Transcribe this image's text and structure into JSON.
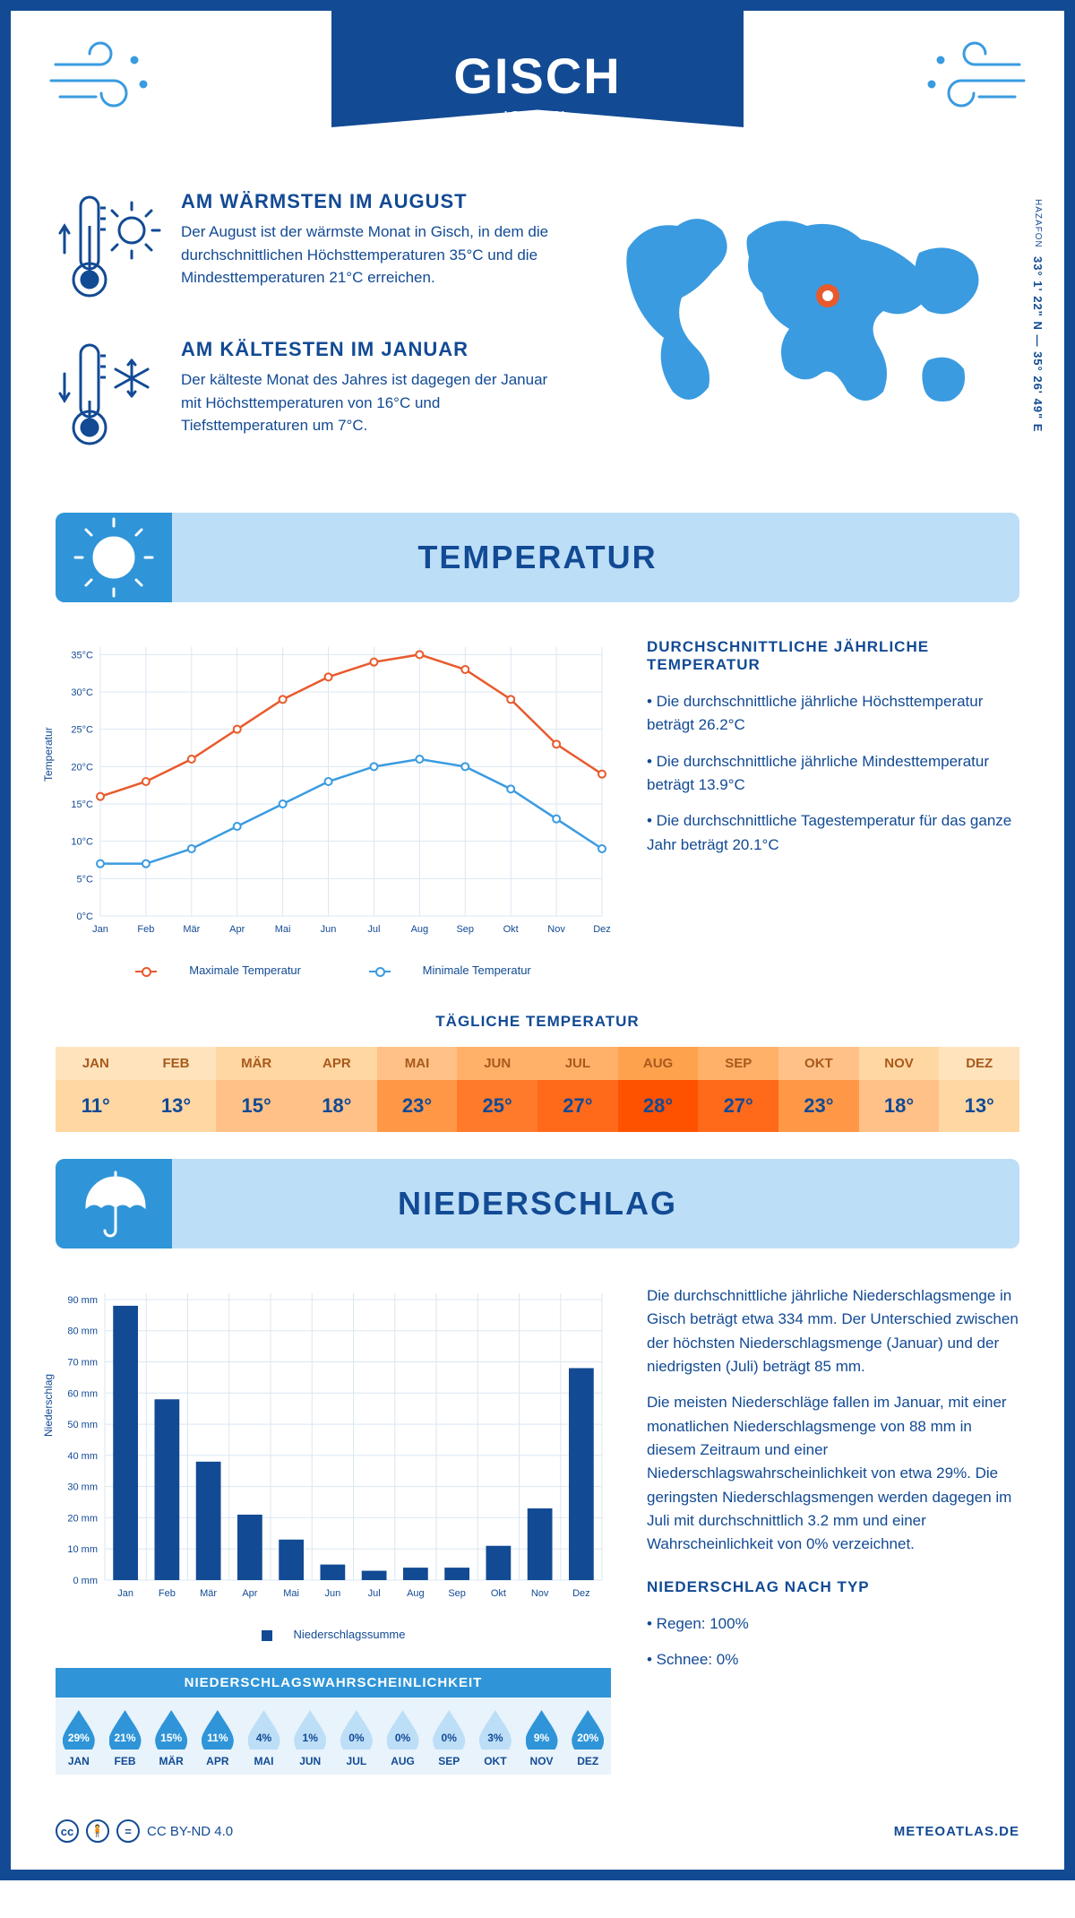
{
  "header": {
    "city": "GISCH",
    "country": "ISRAEL"
  },
  "coords": {
    "region": "HAZAFON",
    "text": "33° 1' 22\" N — 35° 26' 49\" E"
  },
  "fact_warm": {
    "title": "AM WÄRMSTEN IM AUGUST",
    "text": "Der August ist der wärmste Monat in Gisch, in dem die durchschnittlichen Höchsttemperaturen 35°C und die Mindesttemperaturen 21°C erreichen."
  },
  "fact_cold": {
    "title": "AM KÄLTESTEN IM JANUAR",
    "text": "Der kälteste Monat des Jahres ist dagegen der Januar mit Höchsttemperaturen von 16°C und Tiefsttemperaturen um 7°C."
  },
  "temp_section": {
    "title": "TEMPERATUR",
    "side_title": "DURCHSCHNITTLICHE JÄHRLICHE TEMPERATUR",
    "bullets": [
      "• Die durchschnittliche jährliche Höchsttemperatur beträgt 26.2°C",
      "• Die durchschnittliche jährliche Mindesttemperatur beträgt 13.9°C",
      "• Die durchschnittliche Tagestemperatur für das ganze Jahr beträgt 20.1°C"
    ],
    "chart": {
      "months": [
        "Jan",
        "Feb",
        "Mär",
        "Apr",
        "Mai",
        "Jun",
        "Jul",
        "Aug",
        "Sep",
        "Okt",
        "Nov",
        "Dez"
      ],
      "max": [
        16,
        18,
        21,
        25,
        29,
        32,
        34,
        35,
        33,
        29,
        23,
        19
      ],
      "min": [
        7,
        7,
        9,
        12,
        15,
        18,
        20,
        21,
        20,
        17,
        13,
        9
      ],
      "ylabel": "Temperatur",
      "yticks": [
        0,
        5,
        10,
        15,
        20,
        25,
        30,
        35
      ],
      "ylim": [
        0,
        36
      ],
      "max_color": "#e85a2c",
      "min_color": "#3a9be0",
      "grid_color": "#dbe7f2",
      "legend_max": "Maximale Temperatur",
      "legend_min": "Minimale Temperatur"
    },
    "daily_title": "TÄGLICHE TEMPERATUR",
    "daily": {
      "months": [
        "JAN",
        "FEB",
        "MÄR",
        "APR",
        "MAI",
        "JUN",
        "JUL",
        "AUG",
        "SEP",
        "OKT",
        "NOV",
        "DEZ"
      ],
      "values": [
        "11°",
        "13°",
        "15°",
        "18°",
        "23°",
        "25°",
        "27°",
        "28°",
        "27°",
        "23°",
        "18°",
        "13°"
      ],
      "head_colors": [
        "#ffe3bd",
        "#ffe3bd",
        "#ffd7a3",
        "#ffd7a3",
        "#ffc187",
        "#ffb169",
        "#ffb169",
        "#ffa24e",
        "#ffb169",
        "#ffc187",
        "#ffd7a3",
        "#ffe3bd"
      ],
      "val_colors": [
        "#ffd7a3",
        "#ffd7a3",
        "#ffc187",
        "#ffc187",
        "#ff9846",
        "#ff7a2a",
        "#ff6a1a",
        "#ff5200",
        "#ff6a1a",
        "#ff9846",
        "#ffc187",
        "#ffd7a3"
      ]
    }
  },
  "precip_section": {
    "title": "NIEDERSCHLAG",
    "chart": {
      "months": [
        "Jan",
        "Feb",
        "Mär",
        "Apr",
        "Mai",
        "Jun",
        "Jul",
        "Aug",
        "Sep",
        "Okt",
        "Nov",
        "Dez"
      ],
      "values": [
        88,
        58,
        38,
        21,
        13,
        5,
        3,
        4,
        4,
        11,
        23,
        68
      ],
      "ylabel": "Niederschlag",
      "yticks": [
        0,
        10,
        20,
        30,
        40,
        50,
        60,
        70,
        80,
        90
      ],
      "ylim": [
        0,
        92
      ],
      "bar_color": "#124a94",
      "grid_color": "#dbe7f2",
      "legend": "Niederschlagssumme"
    },
    "text1": "Die durchschnittliche jährliche Niederschlagsmenge in Gisch beträgt etwa 334 mm. Der Unterschied zwischen der höchsten Niederschlagsmenge (Januar) und der niedrigsten (Juli) beträgt 85 mm.",
    "text2": "Die meisten Niederschläge fallen im Januar, mit einer monatlichen Niederschlagsmenge von 88 mm in diesem Zeitraum und einer Niederschlagswahrscheinlichkeit von etwa 29%. Die geringsten Niederschlagsmengen werden dagegen im Juli mit durchschnittlich 3.2 mm und einer Wahrscheinlichkeit von 0% verzeichnet.",
    "type_title": "NIEDERSCHLAG NACH TYP",
    "type_items": [
      "• Regen: 100%",
      "• Schnee: 0%"
    ],
    "prob_title": "NIEDERSCHLAGSWAHRSCHEINLICHKEIT",
    "prob": {
      "months": [
        "JAN",
        "FEB",
        "MÄR",
        "APR",
        "MAI",
        "JUN",
        "JUL",
        "AUG",
        "SEP",
        "OKT",
        "NOV",
        "DEZ"
      ],
      "values": [
        "29%",
        "21%",
        "15%",
        "11%",
        "4%",
        "1%",
        "0%",
        "0%",
        "0%",
        "3%",
        "9%",
        "20%"
      ],
      "filled": [
        true,
        true,
        true,
        true,
        false,
        false,
        false,
        false,
        false,
        false,
        true,
        true
      ]
    }
  },
  "footer": {
    "license": "CC BY-ND 4.0",
    "site": "METEOATLAS.DE"
  }
}
